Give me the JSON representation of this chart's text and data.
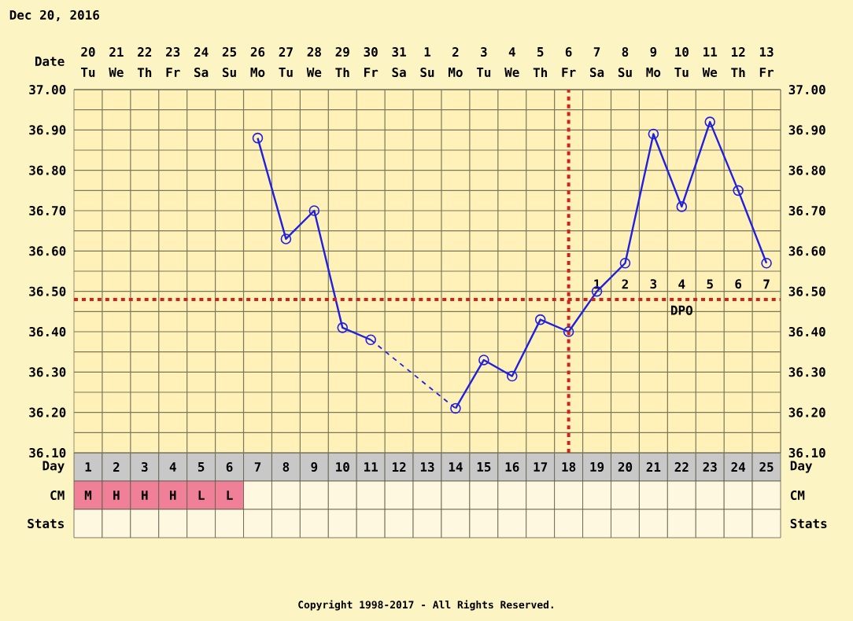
{
  "chart_data": [
    {
      "type": "other",
      "title": "Dec 20, 2016",
      "annotations": [
        "Tu",
        "We",
        "Th",
        "Fr",
        "Sa",
        "Su",
        "Mo",
        "Tu",
        "We",
        "Th",
        "Fr",
        "Sa",
        "Su",
        "Mo",
        "Tu",
        "We",
        "Th",
        "Fr",
        "Sa",
        "Su",
        "Mo",
        "Tu",
        "We",
        "Th",
        "Fr"
      ]
    },
    {
      "type": "line",
      "xlabel": "Day",
      "x2label": "Date",
      "series": [
        {
          "color": "#2020e0",
          "x": [
            7,
            8,
            9,
            10,
            11,
            12,
            13,
            14,
            15,
            16,
            17,
            18,
            19,
            20,
            21,
            22,
            23,
            24,
            25
          ],
          "values": [
            36.88,
            36.63,
            36.7,
            36.41,
            36.38,
            null,
            null,
            36.21,
            36.33,
            36.29,
            36.43,
            36.4,
            36.5,
            36.57,
            36.89,
            36.71,
            36.92,
            36.75,
            36.57
          ]
        }
      ],
      "xlim": [
        0.5,
        25.5
      ],
      "xticks": [
        1,
        2,
        3,
        4,
        5,
        6,
        7,
        8,
        9,
        10,
        11,
        12,
        13,
        14,
        15,
        16,
        17,
        18,
        19,
        20,
        21,
        22,
        23,
        24,
        25
      ],
      "x2lim": [
        "2016-12-19T12:00",
        "2017-01-13T12:00"
      ],
      "x2ticks": [
        {
          "value": "2016-12-20",
          "label": "20"
        },
        {
          "value": "2016-12-21",
          "label": "21"
        },
        {
          "value": "2016-12-22",
          "label": "22"
        },
        {
          "value": "2016-12-23",
          "label": "23"
        },
        {
          "value": "2016-12-24",
          "label": "24"
        },
        {
          "value": "2016-12-25",
          "label": "25"
        },
        {
          "value": "2016-12-26",
          "label": "26"
        },
        {
          "value": "2016-12-27",
          "label": "27"
        },
        {
          "value": "2016-12-28",
          "label": "28"
        },
        {
          "value": "2016-12-29",
          "label": "29"
        },
        {
          "value": "2016-12-30",
          "label": "30"
        },
        {
          "value": "2016-12-31",
          "label": "31"
        },
        {
          "value": "2017-01-01",
          "label": "1"
        },
        {
          "value": "2017-01-02",
          "label": "2"
        },
        {
          "value": "2017-01-03",
          "label": "3"
        },
        {
          "value": "2017-01-04",
          "label": "4"
        },
        {
          "value": "2017-01-05",
          "label": "5"
        },
        {
          "value": "2017-01-06",
          "label": "6"
        },
        {
          "value": "2017-01-07",
          "label": "7"
        },
        {
          "value": "2017-01-08",
          "label": "8"
        },
        {
          "value": "2017-01-09",
          "label": "9"
        },
        {
          "value": "2017-01-10",
          "label": "10"
        },
        {
          "value": "2017-01-11",
          "label": "11"
        },
        {
          "value": "2017-01-12",
          "label": "12"
        },
        {
          "value": "2017-01-13",
          "label": "13"
        }
      ],
      "ylim": [
        36.1,
        37.0
      ],
      "yticks": [
        {
          "value": 36.1,
          "label": "36.10"
        },
        {
          "value": 36.2,
          "label": "36.20"
        },
        {
          "value": 36.3,
          "label": "36.30"
        },
        {
          "value": 36.4,
          "label": "36.40"
        },
        {
          "value": 36.5,
          "label": "36.50"
        },
        {
          "value": 36.6,
          "label": "36.60"
        },
        {
          "value": 36.7,
          "label": "36.70"
        },
        {
          "value": 36.8,
          "label": "36.80"
        },
        {
          "value": 36.9,
          "label": "36.90"
        },
        {
          "value": 37.0,
          "label": "37.00"
        }
      ],
      "y2lim": [
        36.1,
        37.0
      ],
      "y2ticks": [
        {
          "value": 36.1,
          "label": "36.10"
        },
        {
          "value": 36.2,
          "label": "36.20"
        },
        {
          "value": 36.3,
          "label": "36.30"
        },
        {
          "value": 36.4,
          "label": "36.40"
        },
        {
          "value": 36.5,
          "label": "36.50"
        },
        {
          "value": 36.6,
          "label": "36.60"
        },
        {
          "value": 36.7,
          "label": "36.70"
        },
        {
          "value": 36.8,
          "label": "36.80"
        },
        {
          "value": 36.9,
          "label": "36.90"
        },
        {
          "value": 37.0,
          "label": "37.00"
        }
      ],
      "grid": true,
      "marker": "circle",
      "ref_lines": [
        {
          "axis": "x",
          "value": 18,
          "color": "#d02020",
          "line_style": "dotted"
        },
        {
          "axis": "y",
          "value": 36.48,
          "color": "#d02020",
          "line_style": "dotted"
        }
      ],
      "annotations": [
        "1",
        "2",
        "3",
        "4",
        "5",
        "6",
        "7",
        "DPO"
      ]
    },
    {
      "type": "other",
      "ylabel": "CM",
      "annotations": [
        "M",
        "H",
        "H",
        "H",
        "L",
        "L"
      ],
      "colors": [
        "#f08098",
        "#f08098",
        "#f08098",
        "#f08098",
        "#f08098",
        "#f08098"
      ]
    },
    {
      "type": "other",
      "ylabel": "Stats",
      "annotations": [
        "Copyright 1998-2017 - All Rights Reserved."
      ]
    }
  ]
}
